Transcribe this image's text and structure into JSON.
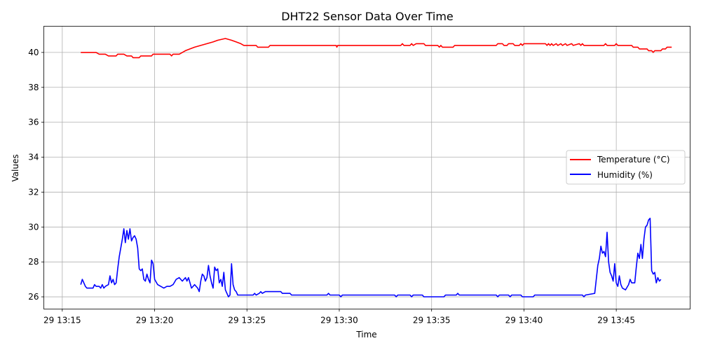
{
  "chart_data": {
    "type": "line",
    "title": "DHT22 Sensor Data Over Time",
    "xlabel": "Time",
    "ylabel": "Values",
    "xlim": [
      "13:14:00",
      "13:49:00"
    ],
    "ylim": [
      25.3,
      41.5
    ],
    "x_ticks": [
      {
        "t": "13:15",
        "label": "29 13:15"
      },
      {
        "t": "13:20",
        "label": "29 13:20"
      },
      {
        "t": "13:25",
        "label": "29 13:25"
      },
      {
        "t": "13:30",
        "label": "29 13:30"
      },
      {
        "t": "13:35",
        "label": "29 13:35"
      },
      {
        "t": "13:40",
        "label": "29 13:40"
      },
      {
        "t": "13:45",
        "label": "29 13:45"
      }
    ],
    "y_ticks": [
      26,
      28,
      30,
      32,
      34,
      36,
      38,
      40
    ],
    "grid": true,
    "legend_position": "center-right",
    "series": [
      {
        "name": "Temperature (°C)",
        "color": "#ff0000",
        "points": [
          [
            "13:16:00",
            40.0
          ],
          [
            "13:16:50",
            40.0
          ],
          [
            "13:17:00",
            39.9
          ],
          [
            "13:17:20",
            39.9
          ],
          [
            "13:17:30",
            39.8
          ],
          [
            "13:17:55",
            39.8
          ],
          [
            "13:18:00",
            39.9
          ],
          [
            "13:18:20",
            39.9
          ],
          [
            "13:18:30",
            39.8
          ],
          [
            "13:18:45",
            39.8
          ],
          [
            "13:18:50",
            39.7
          ],
          [
            "13:19:10",
            39.7
          ],
          [
            "13:19:15",
            39.8
          ],
          [
            "13:19:50",
            39.8
          ],
          [
            "13:19:55",
            39.9
          ],
          [
            "13:20:50",
            39.9
          ],
          [
            "13:20:55",
            39.8
          ],
          [
            "13:21:00",
            39.9
          ],
          [
            "13:21:20",
            39.9
          ],
          [
            "13:21:30",
            40.0
          ],
          [
            "13:21:40",
            40.1
          ],
          [
            "13:21:55",
            40.2
          ],
          [
            "13:22:10",
            40.3
          ],
          [
            "13:22:30",
            40.4
          ],
          [
            "13:22:50",
            40.5
          ],
          [
            "13:23:10",
            40.6
          ],
          [
            "13:23:25",
            40.7
          ],
          [
            "13:23:50",
            40.8
          ],
          [
            "13:24:10",
            40.7
          ],
          [
            "13:24:25",
            40.6
          ],
          [
            "13:24:40",
            40.5
          ],
          [
            "13:24:50",
            40.4
          ],
          [
            "13:25:30",
            40.4
          ],
          [
            "13:25:35",
            40.3
          ],
          [
            "13:26:10",
            40.3
          ],
          [
            "13:26:15",
            40.4
          ],
          [
            "13:29:50",
            40.4
          ],
          [
            "13:29:52",
            40.3
          ],
          [
            "13:29:55",
            40.4
          ],
          [
            "13:33:20",
            40.4
          ],
          [
            "13:33:25",
            40.5
          ],
          [
            "13:33:30",
            40.4
          ],
          [
            "13:33:50",
            40.4
          ],
          [
            "13:33:55",
            40.5
          ],
          [
            "13:34:00",
            40.4
          ],
          [
            "13:34:10",
            40.5
          ],
          [
            "13:34:35",
            40.5
          ],
          [
            "13:34:40",
            40.4
          ],
          [
            "13:35:20",
            40.4
          ],
          [
            "13:35:25",
            40.3
          ],
          [
            "13:35:30",
            40.4
          ],
          [
            "13:35:35",
            40.3
          ],
          [
            "13:36:10",
            40.3
          ],
          [
            "13:36:15",
            40.4
          ],
          [
            "13:38:30",
            40.4
          ],
          [
            "13:38:35",
            40.5
          ],
          [
            "13:38:50",
            40.5
          ],
          [
            "13:38:55",
            40.4
          ],
          [
            "13:39:05",
            40.4
          ],
          [
            "13:39:10",
            40.5
          ],
          [
            "13:39:25",
            40.5
          ],
          [
            "13:39:30",
            40.4
          ],
          [
            "13:39:45",
            40.4
          ],
          [
            "13:39:50",
            40.5
          ],
          [
            "13:39:55",
            40.4
          ],
          [
            "13:40:00",
            40.5
          ],
          [
            "13:41:10",
            40.5
          ],
          [
            "13:41:15",
            40.4
          ],
          [
            "13:41:20",
            40.5
          ],
          [
            "13:41:25",
            40.4
          ],
          [
            "13:41:30",
            40.5
          ],
          [
            "13:41:35",
            40.4
          ],
          [
            "13:41:45",
            40.5
          ],
          [
            "13:41:50",
            40.4
          ],
          [
            "13:42:00",
            40.5
          ],
          [
            "13:42:05",
            40.4
          ],
          [
            "13:42:15",
            40.5
          ],
          [
            "13:42:20",
            40.4
          ],
          [
            "13:42:35",
            40.5
          ],
          [
            "13:42:40",
            40.4
          ],
          [
            "13:43:00",
            40.5
          ],
          [
            "13:43:05",
            40.4
          ],
          [
            "13:43:10",
            40.5
          ],
          [
            "13:43:15",
            40.4
          ],
          [
            "13:44:20",
            40.4
          ],
          [
            "13:44:25",
            40.5
          ],
          [
            "13:44:30",
            40.4
          ],
          [
            "13:44:55",
            40.4
          ],
          [
            "13:45:00",
            40.5
          ],
          [
            "13:45:05",
            40.4
          ],
          [
            "13:45:50",
            40.4
          ],
          [
            "13:45:55",
            40.3
          ],
          [
            "13:46:10",
            40.3
          ],
          [
            "13:46:15",
            40.2
          ],
          [
            "13:46:40",
            40.2
          ],
          [
            "13:46:45",
            40.1
          ],
          [
            "13:46:55",
            40.1
          ],
          [
            "13:47:00",
            40.0
          ],
          [
            "13:47:05",
            40.1
          ],
          [
            "13:47:25",
            40.1
          ],
          [
            "13:47:30",
            40.2
          ],
          [
            "13:47:40",
            40.2
          ],
          [
            "13:47:45",
            40.3
          ],
          [
            "13:48:00",
            40.3
          ]
        ]
      },
      {
        "name": "Humidity (%)",
        "color": "#0000ff",
        "points": [
          [
            "13:16:00",
            26.7
          ],
          [
            "13:16:05",
            27.0
          ],
          [
            "13:16:10",
            26.8
          ],
          [
            "13:16:15",
            26.6
          ],
          [
            "13:16:20",
            26.5
          ],
          [
            "13:16:40",
            26.5
          ],
          [
            "13:16:45",
            26.7
          ],
          [
            "13:16:50",
            26.6
          ],
          [
            "13:17:00",
            26.6
          ],
          [
            "13:17:05",
            26.5
          ],
          [
            "13:17:10",
            26.7
          ],
          [
            "13:17:15",
            26.5
          ],
          [
            "13:17:20",
            26.6
          ],
          [
            "13:17:30",
            26.7
          ],
          [
            "13:17:35",
            27.2
          ],
          [
            "13:17:40",
            26.8
          ],
          [
            "13:17:45",
            27.0
          ],
          [
            "13:17:50",
            26.7
          ],
          [
            "13:17:55",
            26.8
          ],
          [
            "13:18:00",
            27.6
          ],
          [
            "13:18:05",
            28.3
          ],
          [
            "13:18:10",
            28.8
          ],
          [
            "13:18:15",
            29.3
          ],
          [
            "13:18:20",
            29.9
          ],
          [
            "13:18:25",
            29.1
          ],
          [
            "13:18:30",
            29.8
          ],
          [
            "13:18:35",
            29.3
          ],
          [
            "13:18:40",
            29.9
          ],
          [
            "13:18:45",
            29.2
          ],
          [
            "13:18:50",
            29.4
          ],
          [
            "13:18:55",
            29.5
          ],
          [
            "13:19:00",
            29.3
          ],
          [
            "13:19:05",
            28.8
          ],
          [
            "13:19:10",
            27.6
          ],
          [
            "13:19:15",
            27.5
          ],
          [
            "13:19:20",
            27.6
          ],
          [
            "13:19:25",
            27.0
          ],
          [
            "13:19:30",
            26.9
          ],
          [
            "13:19:35",
            27.3
          ],
          [
            "13:19:40",
            27.0
          ],
          [
            "13:19:45",
            26.8
          ],
          [
            "13:19:50",
            28.1
          ],
          [
            "13:19:55",
            27.9
          ],
          [
            "13:20:00",
            27.0
          ],
          [
            "13:20:10",
            26.7
          ],
          [
            "13:20:20",
            26.6
          ],
          [
            "13:20:30",
            26.5
          ],
          [
            "13:20:40",
            26.6
          ],
          [
            "13:20:50",
            26.6
          ],
          [
            "13:21:00",
            26.7
          ],
          [
            "13:21:10",
            27.0
          ],
          [
            "13:21:20",
            27.1
          ],
          [
            "13:21:30",
            26.9
          ],
          [
            "13:21:40",
            27.1
          ],
          [
            "13:21:45",
            26.9
          ],
          [
            "13:21:50",
            27.1
          ],
          [
            "13:22:00",
            26.5
          ],
          [
            "13:22:10",
            26.7
          ],
          [
            "13:22:20",
            26.5
          ],
          [
            "13:22:25",
            26.3
          ],
          [
            "13:22:30",
            26.9
          ],
          [
            "13:22:35",
            27.3
          ],
          [
            "13:22:40",
            27.2
          ],
          [
            "13:22:45",
            26.9
          ],
          [
            "13:22:50",
            27.1
          ],
          [
            "13:22:55",
            27.8
          ],
          [
            "13:23:00",
            27.2
          ],
          [
            "13:23:05",
            26.8
          ],
          [
            "13:23:10",
            26.5
          ],
          [
            "13:23:15",
            27.7
          ],
          [
            "13:23:20",
            27.5
          ],
          [
            "13:23:25",
            27.6
          ],
          [
            "13:23:30",
            26.8
          ],
          [
            "13:23:35",
            27.0
          ],
          [
            "13:23:40",
            26.6
          ],
          [
            "13:23:45",
            27.4
          ],
          [
            "13:23:50",
            26.4
          ],
          [
            "13:23:55",
            26.2
          ],
          [
            "13:24:00",
            26.0
          ],
          [
            "13:24:05",
            26.1
          ],
          [
            "13:24:10",
            27.9
          ],
          [
            "13:24:15",
            26.7
          ],
          [
            "13:24:20",
            26.4
          ],
          [
            "13:24:25",
            26.3
          ],
          [
            "13:24:30",
            26.1
          ],
          [
            "13:25:20",
            26.1
          ],
          [
            "13:25:25",
            26.2
          ],
          [
            "13:25:30",
            26.1
          ],
          [
            "13:25:40",
            26.2
          ],
          [
            "13:25:45",
            26.3
          ],
          [
            "13:25:50",
            26.2
          ],
          [
            "13:26:00",
            26.3
          ],
          [
            "13:26:50",
            26.3
          ],
          [
            "13:26:55",
            26.2
          ],
          [
            "13:27:20",
            26.2
          ],
          [
            "13:27:25",
            26.1
          ],
          [
            "13:29:20",
            26.1
          ],
          [
            "13:29:25",
            26.2
          ],
          [
            "13:29:30",
            26.1
          ],
          [
            "13:30:00",
            26.1
          ],
          [
            "13:30:05",
            26.0
          ],
          [
            "13:30:10",
            26.1
          ],
          [
            "13:33:00",
            26.1
          ],
          [
            "13:33:05",
            26.0
          ],
          [
            "13:33:10",
            26.1
          ],
          [
            "13:33:50",
            26.1
          ],
          [
            "13:33:55",
            26.0
          ],
          [
            "13:34:00",
            26.1
          ],
          [
            "13:34:30",
            26.1
          ],
          [
            "13:34:35",
            26.0
          ],
          [
            "13:35:40",
            26.0
          ],
          [
            "13:35:45",
            26.1
          ],
          [
            "13:36:20",
            26.1
          ],
          [
            "13:36:25",
            26.2
          ],
          [
            "13:36:30",
            26.1
          ],
          [
            "13:38:30",
            26.1
          ],
          [
            "13:38:35",
            26.0
          ],
          [
            "13:38:40",
            26.1
          ],
          [
            "13:39:10",
            26.1
          ],
          [
            "13:39:15",
            26.0
          ],
          [
            "13:39:20",
            26.1
          ],
          [
            "13:39:50",
            26.1
          ],
          [
            "13:39:55",
            26.0
          ],
          [
            "13:40:30",
            26.0
          ],
          [
            "13:40:35",
            26.1
          ],
          [
            "13:41:00",
            26.1
          ],
          [
            "13:43:10",
            26.1
          ],
          [
            "13:43:15",
            26.0
          ],
          [
            "13:43:20",
            26.1
          ],
          [
            "13:43:50",
            26.2
          ],
          [
            "13:43:55",
            27.0
          ],
          [
            "13:44:00",
            27.8
          ],
          [
            "13:44:05",
            28.2
          ],
          [
            "13:44:10",
            28.9
          ],
          [
            "13:44:15",
            28.5
          ],
          [
            "13:44:20",
            28.6
          ],
          [
            "13:44:25",
            28.3
          ],
          [
            "13:44:30",
            29.7
          ],
          [
            "13:44:35",
            28.0
          ],
          [
            "13:44:40",
            27.4
          ],
          [
            "13:44:45",
            27.2
          ],
          [
            "13:44:50",
            26.9
          ],
          [
            "13:44:55",
            27.9
          ],
          [
            "13:45:00",
            26.8
          ],
          [
            "13:45:05",
            26.6
          ],
          [
            "13:45:10",
            27.2
          ],
          [
            "13:45:15",
            26.7
          ],
          [
            "13:45:20",
            26.5
          ],
          [
            "13:45:30",
            26.4
          ],
          [
            "13:45:40",
            26.7
          ],
          [
            "13:45:45",
            27.0
          ],
          [
            "13:45:50",
            26.8
          ],
          [
            "13:46:00",
            26.8
          ],
          [
            "13:46:05",
            27.7
          ],
          [
            "13:46:10",
            28.5
          ],
          [
            "13:46:15",
            28.2
          ],
          [
            "13:46:20",
            29.0
          ],
          [
            "13:46:25",
            28.2
          ],
          [
            "13:46:30",
            29.3
          ],
          [
            "13:46:35",
            30.0
          ],
          [
            "13:46:40",
            30.1
          ],
          [
            "13:46:45",
            30.4
          ],
          [
            "13:46:50",
            30.5
          ],
          [
            "13:46:55",
            27.5
          ],
          [
            "13:47:00",
            27.3
          ],
          [
            "13:47:05",
            27.4
          ],
          [
            "13:47:10",
            26.8
          ],
          [
            "13:47:15",
            27.1
          ],
          [
            "13:47:20",
            26.9
          ],
          [
            "13:47:25",
            27.0
          ]
        ]
      }
    ]
  }
}
